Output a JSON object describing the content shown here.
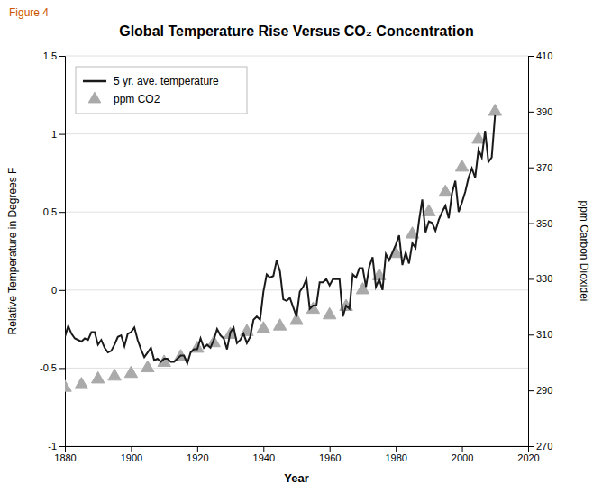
{
  "chart_data": {
    "type": "line",
    "title": "Global Temperature Rise Versus CO₂ Concentration",
    "x_label": "Year",
    "y_label": "Relative Temperature in Degrees F",
    "y2_label": "ppm Carbon Dioxidei",
    "annotations": [
      {
        "text": "Figure 4",
        "color": "#cc5500"
      }
    ],
    "xlim": [
      1880,
      2020
    ],
    "xticks": [
      1880,
      1900,
      1920,
      1940,
      1960,
      1980,
      2000,
      2020
    ],
    "ylim": [
      -1.0,
      1.5
    ],
    "yticks": [
      -1,
      -0.5,
      0,
      0.5,
      1,
      1.5
    ],
    "y2lim": [
      270,
      410
    ],
    "y2ticks": [
      270,
      290,
      310,
      330,
      350,
      370,
      390,
      410
    ],
    "grid": true,
    "legend": "upper left",
    "series": [
      {
        "name": "5 yr. ave. temperature",
        "type": "line",
        "color": "#1a1a1a",
        "x": [
          1880,
          1881,
          1882,
          1883,
          1884,
          1885,
          1886,
          1887,
          1888,
          1889,
          1890,
          1891,
          1892,
          1893,
          1894,
          1895,
          1896,
          1897,
          1898,
          1899,
          1900,
          1901,
          1902,
          1903,
          1904,
          1905,
          1906,
          1907,
          1908,
          1909,
          1910,
          1911,
          1912,
          1913,
          1914,
          1915,
          1916,
          1917,
          1918,
          1919,
          1920,
          1921,
          1922,
          1923,
          1924,
          1925,
          1926,
          1927,
          1928,
          1929,
          1930,
          1931,
          1932,
          1933,
          1934,
          1935,
          1936,
          1937,
          1938,
          1939,
          1940,
          1941,
          1942,
          1943,
          1944,
          1945,
          1946,
          1947,
          1948,
          1949,
          1950,
          1951,
          1952,
          1953,
          1954,
          1955,
          1956,
          1957,
          1958,
          1959,
          1960,
          1961,
          1962,
          1963,
          1964,
          1965,
          1966,
          1967,
          1968,
          1969,
          1970,
          1971,
          1972,
          1973,
          1974,
          1975,
          1976,
          1977,
          1978,
          1979,
          1980,
          1981,
          1982,
          1983,
          1984,
          1985,
          1986,
          1987,
          1988,
          1989,
          1990,
          1991,
          1992,
          1993,
          1994,
          1995,
          1996,
          1997,
          1998,
          1999,
          2000,
          2001,
          2002,
          2003,
          2004,
          2005,
          2006,
          2007,
          2008,
          2009,
          2010
        ],
        "values": [
          -0.3,
          -0.23,
          -0.28,
          -0.31,
          -0.32,
          -0.33,
          -0.31,
          -0.32,
          -0.27,
          -0.27,
          -0.35,
          -0.32,
          -0.37,
          -0.4,
          -0.39,
          -0.35,
          -0.3,
          -0.29,
          -0.36,
          -0.28,
          -0.27,
          -0.24,
          -0.32,
          -0.38,
          -0.43,
          -0.4,
          -0.37,
          -0.45,
          -0.44,
          -0.46,
          -0.44,
          -0.44,
          -0.46,
          -0.46,
          -0.44,
          -0.42,
          -0.42,
          -0.47,
          -0.4,
          -0.38,
          -0.38,
          -0.31,
          -0.37,
          -0.35,
          -0.37,
          -0.32,
          -0.25,
          -0.29,
          -0.31,
          -0.38,
          -0.27,
          -0.24,
          -0.34,
          -0.32,
          -0.28,
          -0.34,
          -0.3,
          -0.19,
          -0.17,
          -0.19,
          -0.01,
          0.1,
          0.08,
          0.09,
          0.19,
          0.12,
          -0.06,
          -0.07,
          -0.05,
          -0.11,
          -0.17,
          -0.01,
          0.02,
          0.07,
          -0.12,
          -0.1,
          -0.1,
          0.05,
          0.05,
          0.07,
          0.03,
          0.07,
          0.07,
          0.07,
          -0.17,
          -0.1,
          -0.12,
          0.1,
          0.08,
          0.14,
          0.14,
          0.02,
          0.15,
          0.21,
          0.02,
          0.07,
          0.0,
          0.23,
          0.19,
          0.24,
          0.29,
          0.35,
          0.16,
          0.24,
          0.17,
          0.3,
          0.27,
          0.44,
          0.58,
          0.37,
          0.44,
          0.43,
          0.38,
          0.45,
          0.5,
          0.54,
          0.46,
          0.62,
          0.7,
          0.5,
          0.56,
          0.63,
          0.72,
          0.78,
          0.72,
          0.9,
          0.85,
          1.02,
          0.82,
          0.85,
          1.12
        ]
      },
      {
        "name": "ppm CO2",
        "type": "scatter",
        "marker": "triangle",
        "color": "#aaaaaa",
        "axis": "y2",
        "x": [
          1880,
          1885,
          1890,
          1895,
          1900,
          1905,
          1910,
          1915,
          1920,
          1925,
          1930,
          1935,
          1940,
          1945,
          1950,
          1955,
          1960,
          1965,
          1970,
          1975,
          1980,
          1985,
          1990,
          1995,
          2000,
          2005,
          2010
        ],
        "values": [
          291,
          292,
          294,
          295,
          296,
          298,
          300,
          302,
          305,
          307,
          310,
          311,
          312,
          313,
          315,
          319,
          317,
          320,
          326,
          331,
          339,
          346,
          354,
          361,
          370,
          380,
          390
        ]
      }
    ]
  }
}
